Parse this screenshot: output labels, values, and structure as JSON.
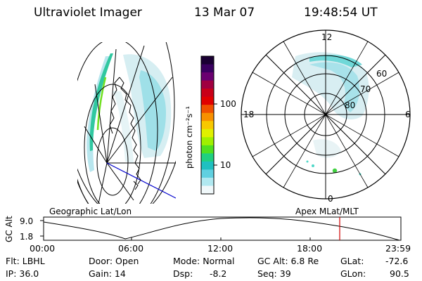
{
  "header": {
    "instrument": "Ultraviolet Imager",
    "date": "13 Mar 07",
    "time": "19:48:54 UT"
  },
  "colorbar": {
    "label": "photon cm⁻²s⁻¹",
    "ticks": [
      "100",
      "10"
    ],
    "colors": [
      "#1a0033",
      "#3a0060",
      "#6a0070",
      "#a00040",
      "#c80018",
      "#e00000",
      "#f05000",
      "#f89000",
      "#f8c800",
      "#e0f000",
      "#a0f000",
      "#50e020",
      "#20d080",
      "#20c0c0",
      "#60d0e0",
      "#b0e8f0",
      "#f0f8fa"
    ]
  },
  "polar_plot": {
    "hour_labels": [
      "12",
      "18",
      "6",
      "0"
    ],
    "lat_labels": [
      "60",
      "70",
      "80"
    ]
  },
  "timeline": {
    "left_label": "Geographic Lat/Lon",
    "right_label": "Apex MLat/MLT",
    "y_axis_label": "GC Alt",
    "y_ticks": [
      "9.0",
      "1.8"
    ],
    "x_ticks": [
      "00:00",
      "06:00",
      "12:00",
      "18:00",
      "23:59"
    ],
    "marker_color": "#d00000"
  },
  "status": {
    "flt": "Flt: LBHL",
    "ip": "IP: 36.0",
    "door": "Door: Open",
    "gain": "Gain: 14",
    "mode": "Mode: Normal",
    "dsp": "Dsp:",
    "dsp_val": "-8.2",
    "gcalt": "GC Alt: 6.8 Re",
    "seq": "Seq: 39",
    "glat_label": "GLat:",
    "glat_val": "-72.6",
    "glon_label": "GLon:",
    "glon_val": "90.5"
  }
}
